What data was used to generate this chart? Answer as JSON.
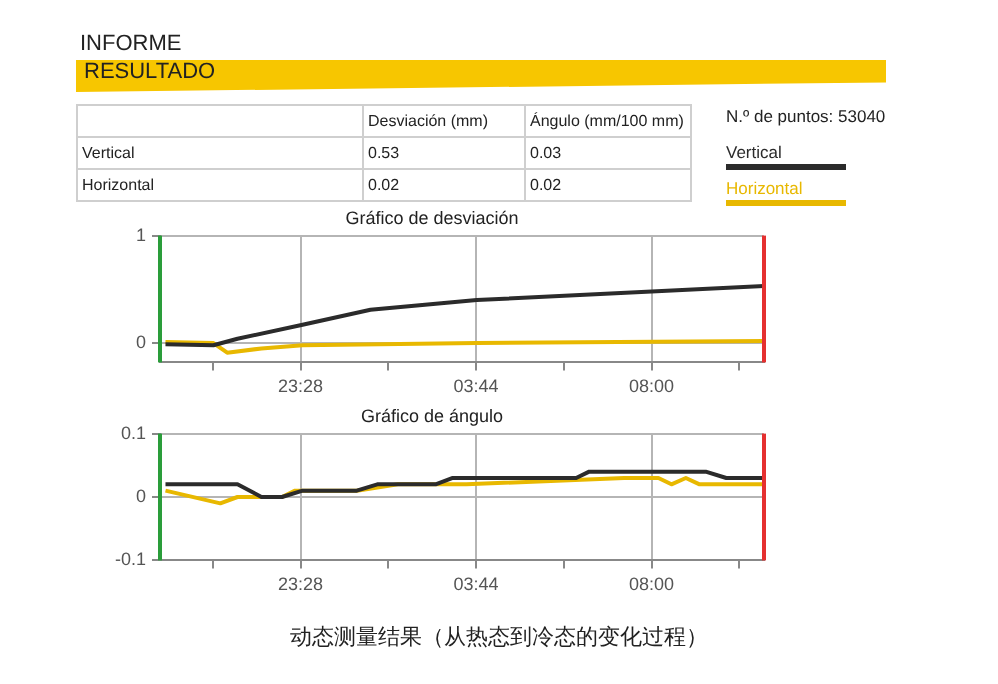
{
  "chart_data": [
    {
      "type": "other",
      "title": "INFORME",
      "subtitle": "RESULTADO",
      "categories": [
        null,
        "Desviación (mm)",
        "Ángulo (mm/100 mm)"
      ],
      "annotations": [
        "Vertical",
        "0.53",
        "0.03",
        "Horizontal",
        "0.02",
        "0.02",
        "N.º de puntos: 53040",
        "动态测量结果（从热态到冷态的变化过程）"
      ]
    },
    {
      "type": "line",
      "title": "Gráfico de desviación",
      "legend": "top right",
      "marker": "none",
      "grid": true,
      "xlim": [
        "2000-01-01T20:03",
        "2000-01-02T10:44"
      ],
      "xticks": [
        {
          "value": "2000-01-01T21:20",
          "label": null
        },
        {
          "value": "2000-01-01T23:28",
          "label": "23:28"
        },
        {
          "value": "2000-01-02T01:36",
          "label": null
        },
        {
          "value": "2000-01-02T03:44",
          "label": "03:44"
        },
        {
          "value": "2000-01-02T05:52",
          "label": null
        },
        {
          "value": "2000-01-02T08:00",
          "label": "08:00"
        },
        {
          "value": "2000-01-02T10:08",
          "label": null
        }
      ],
      "ylim": [
        -0.18,
        1
      ],
      "yticks": [
        0,
        1
      ],
      "ref_lines": [
        {
          "axis": "x",
          "value": "2000-01-01T20:03",
          "color": "#2a9d3a"
        },
        {
          "axis": "x",
          "value": "2000-01-02T10:44",
          "color": "#e53030"
        }
      ],
      "series": [
        {
          "name": "Vertical",
          "color": "#2b2b2b",
          "x": [
            "2000-01-01T20:11",
            "2000-01-01T21:21",
            "2000-01-01T21:56",
            "2000-01-01T23:31",
            "2000-01-02T01:10",
            "2000-01-02T03:45",
            "2000-01-02T08:00",
            "2000-01-02T10:44"
          ],
          "values": [
            -0.01,
            -0.02,
            0.04,
            0.17,
            0.31,
            0.4,
            0.48,
            0.53
          ]
        },
        {
          "name": "Horizontal",
          "color": "#e8b800",
          "x": [
            "2000-01-01T20:11",
            "2000-01-01T21:21",
            "2000-01-01T21:41",
            "2000-01-01T22:31",
            "2000-01-01T23:31",
            "2000-01-02T03:45",
            "2000-01-02T10:44"
          ],
          "values": [
            0.01,
            0.0,
            -0.09,
            -0.05,
            -0.02,
            0.0,
            0.02
          ]
        }
      ]
    },
    {
      "type": "line",
      "title": "Gráfico de ángulo",
      "marker": "none",
      "grid": true,
      "xlim": [
        "2000-01-01T20:03",
        "2000-01-02T10:44"
      ],
      "xticks": [
        {
          "value": "2000-01-01T21:20",
          "label": null
        },
        {
          "value": "2000-01-01T23:28",
          "label": "23:28"
        },
        {
          "value": "2000-01-02T01:36",
          "label": null
        },
        {
          "value": "2000-01-02T03:44",
          "label": "03:44"
        },
        {
          "value": "2000-01-02T05:52",
          "label": null
        },
        {
          "value": "2000-01-02T08:00",
          "label": "08:00"
        },
        {
          "value": "2000-01-02T10:08",
          "label": null
        }
      ],
      "ylim": [
        -0.1,
        0.1
      ],
      "yticks": [
        -0.1,
        0,
        0.1
      ],
      "ref_lines": [
        {
          "axis": "x",
          "value": "2000-01-01T20:03",
          "color": "#2a9d3a"
        },
        {
          "axis": "x",
          "value": "2000-01-02T10:44",
          "color": "#e53030"
        }
      ],
      "series": [
        {
          "color": "#2b2b2b",
          "x": [
            "2000-01-01T20:11",
            "2000-01-01T21:56",
            "2000-01-01T22:31",
            "2000-01-01T23:01",
            "2000-01-01T23:31",
            "2000-01-02T00:50",
            "2000-01-02T01:20",
            "2000-01-02T02:45",
            "2000-01-02T03:10",
            "2000-01-02T06:10",
            "2000-01-02T06:29",
            "2000-01-02T09:19",
            "2000-01-02T09:49",
            "2000-01-02T10:44"
          ],
          "values": [
            0.02,
            0.02,
            0.0,
            0.0,
            0.01,
            0.01,
            0.02,
            0.02,
            0.03,
            0.03,
            0.04,
            0.04,
            0.03,
            0.03
          ]
        },
        {
          "color": "#e8b800",
          "x": [
            "2000-01-01T20:11",
            "2000-01-01T21:31",
            "2000-01-01T21:56",
            "2000-01-01T23:01",
            "2000-01-01T23:20",
            "2000-01-02T00:50",
            "2000-01-02T01:50",
            "2000-01-02T03:30",
            "2000-01-02T07:20",
            "2000-01-02T08:10",
            "2000-01-02T08:29",
            "2000-01-02T08:50",
            "2000-01-02T09:10",
            "2000-01-02T10:44"
          ],
          "values": [
            0.01,
            -0.01,
            0.0,
            0.0,
            0.01,
            0.01,
            0.02,
            0.02,
            0.03,
            0.03,
            0.02,
            0.03,
            0.02,
            0.02
          ]
        }
      ]
    }
  ]
}
